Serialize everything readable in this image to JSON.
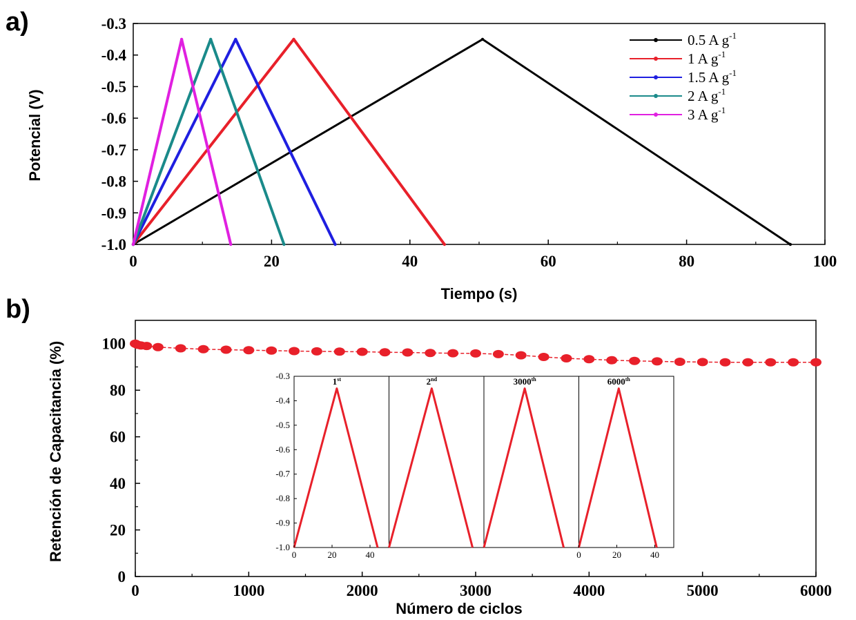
{
  "chart_data": [
    {
      "panel": "a)",
      "type": "line",
      "xlabel": "Tiempo (s)",
      "ylabel": "Potencial (V)",
      "xlim": [
        0,
        100
      ],
      "ylim": [
        -1.0,
        -0.3
      ],
      "xticks": [
        "0",
        "20",
        "40",
        "60",
        "80",
        "100"
      ],
      "yticks": [
        "-0.3",
        "-0.4",
        "-0.5",
        "-0.6",
        "-0.7",
        "-0.8",
        "-0.9",
        "-1.0"
      ],
      "legend_position": "top-right",
      "series": [
        {
          "name": "0.5 A g",
          "sup": "-1",
          "color": "#000000",
          "points": [
            [
              0,
              -1.0
            ],
            [
              50.5,
              -0.35
            ],
            [
              95,
              -1.0
            ]
          ]
        },
        {
          "name": "1 A g",
          "sup": "-1",
          "color": "#e8202a",
          "points": [
            [
              0,
              -1.0
            ],
            [
              23.2,
              -0.35
            ],
            [
              45,
              -1.0
            ]
          ]
        },
        {
          "name": "1.5 A g",
          "sup": "-1",
          "color": "#1f1fe0",
          "points": [
            [
              0,
              -1.0
            ],
            [
              14.8,
              -0.35
            ],
            [
              29.2,
              -1.0
            ]
          ]
        },
        {
          "name": "2 A g",
          "sup": "-1",
          "color": "#1a8a8a",
          "points": [
            [
              0,
              -1.0
            ],
            [
              11.2,
              -0.35
            ],
            [
              21.8,
              -1.0
            ]
          ]
        },
        {
          "name": "3 A g",
          "sup": "-1",
          "color": "#e020e0",
          "points": [
            [
              0,
              -1.0
            ],
            [
              7,
              -0.35
            ],
            [
              14.1,
              -1.0
            ]
          ]
        }
      ]
    },
    {
      "panel": "b)",
      "type": "scatter",
      "xlabel": "Número de ciclos",
      "ylabel": "Retención de Capacitancia (%)",
      "xlim": [
        0,
        6000
      ],
      "ylim": [
        0,
        110
      ],
      "xticks": [
        "0",
        "1000",
        "2000",
        "3000",
        "4000",
        "5000",
        "6000"
      ],
      "yticks": [
        "0",
        "20",
        "40",
        "60",
        "80",
        "100"
      ],
      "color": "#e8202a",
      "series": [
        {
          "x": [
            0,
            20,
            50,
            100,
            200,
            400,
            600,
            800,
            1000,
            1200,
            1400,
            1600,
            1800,
            2000,
            2200,
            2400,
            2600,
            2800,
            3000,
            3200,
            3400,
            3600,
            3800,
            4000,
            4200,
            4400,
            4600,
            4800,
            5000,
            5200,
            5400,
            5600,
            5800,
            6000
          ],
          "y": [
            100,
            99.5,
            99.2,
            99,
            98.5,
            98,
            97.6,
            97.4,
            97.2,
            97,
            96.8,
            96.7,
            96.6,
            96.5,
            96.3,
            96.2,
            96,
            95.9,
            95.8,
            95.5,
            95,
            94.3,
            93.7,
            93.3,
            92.9,
            92.6,
            92.4,
            92.2,
            92.1,
            92,
            92,
            92,
            92,
            92
          ]
        }
      ],
      "inset": {
        "type": "line",
        "ylim": [
          -1.0,
          -0.3
        ],
        "yticks": [
          "-0.3",
          "-0.4",
          "-0.5",
          "-0.6",
          "-0.7",
          "-0.8",
          "-0.9",
          "-1.0"
        ],
        "color": "#e8202a",
        "panels": [
          {
            "label": "1",
            "sup": "st",
            "xticks": [
              "0",
              "20",
              "40"
            ],
            "peak_time": 22.5,
            "end_time": 44
          },
          {
            "label": "2",
            "sup": "nd",
            "xticks": [],
            "peak_time": 22.5,
            "end_time": 44
          },
          {
            "label": "3000",
            "sup": "th",
            "xticks": [],
            "peak_time": 21.5,
            "end_time": 42
          },
          {
            "label": "6000",
            "sup": "th",
            "xticks": [
              "0",
              "20",
              "40"
            ],
            "peak_time": 21,
            "end_time": 41
          }
        ]
      }
    }
  ]
}
